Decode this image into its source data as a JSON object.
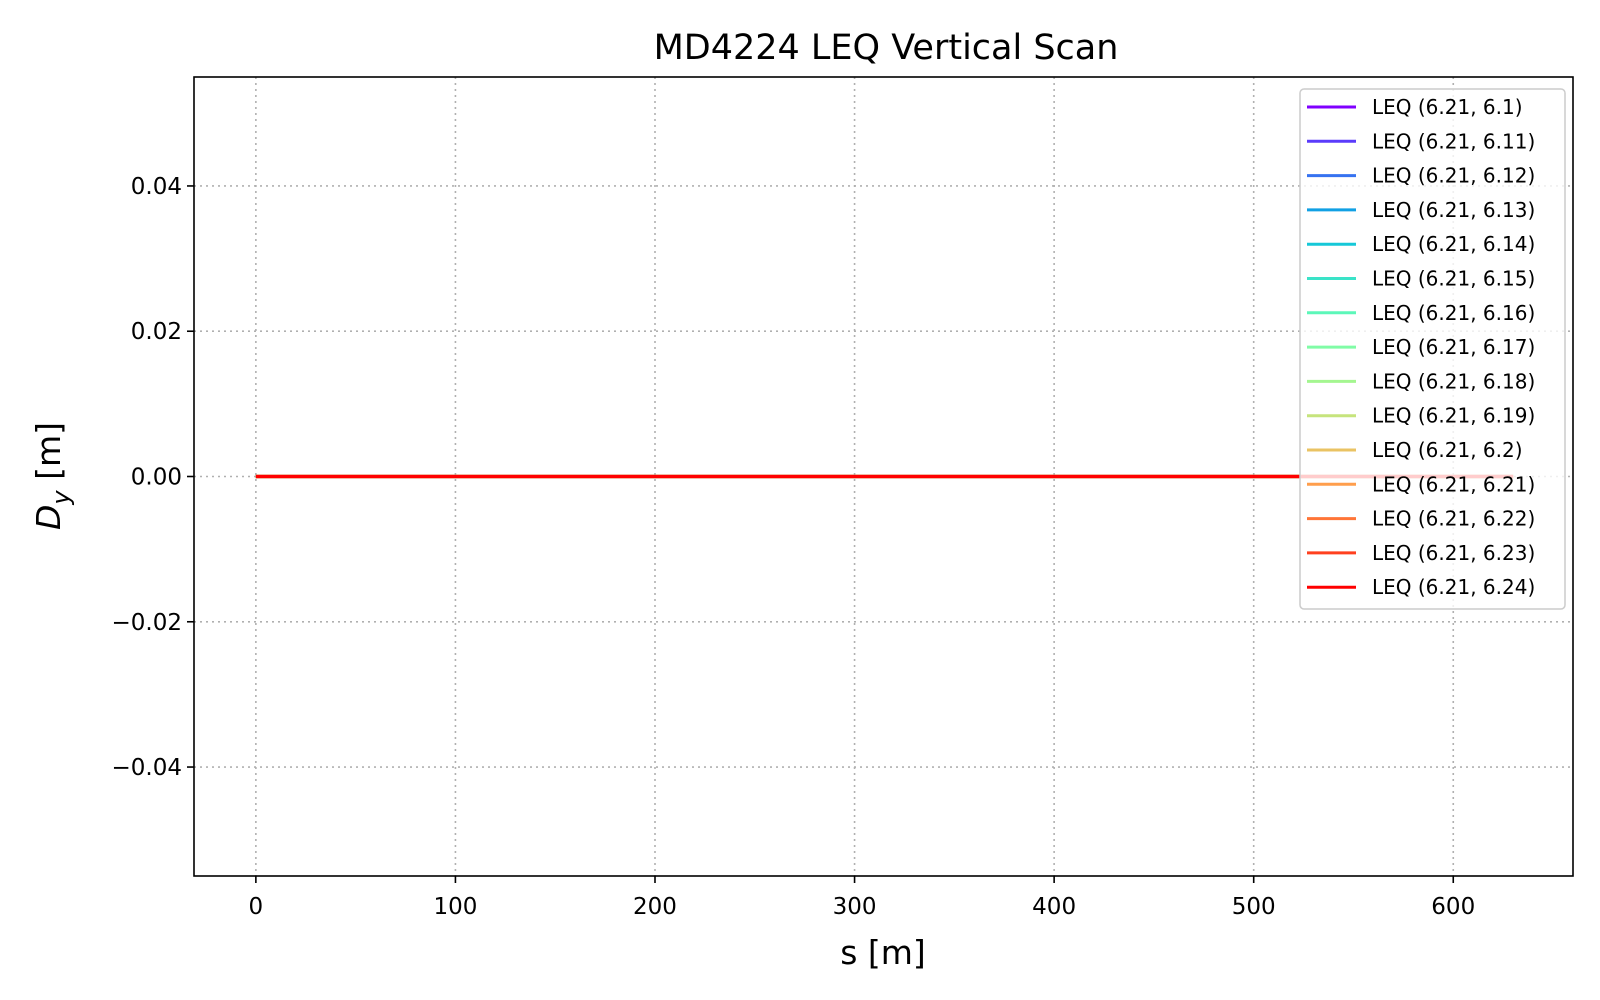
{
  "chart_data": {
    "type": "line",
    "title": "MD4224 LEQ Vertical Scan",
    "xlabel": "s [m]",
    "ylabel_main": "D",
    "ylabel_sub": "y",
    "ylabel_unit": " [m]",
    "xlim": [
      -31,
      660
    ],
    "ylim": [
      -0.055,
      0.055
    ],
    "xticks": [
      0,
      100,
      200,
      300,
      400,
      500,
      600
    ],
    "xtick_labels": [
      "0",
      "100",
      "200",
      "300",
      "400",
      "500",
      "600"
    ],
    "yticks": [
      -0.04,
      -0.02,
      0.0,
      0.02,
      0.04
    ],
    "ytick_labels": [
      "−0.04",
      "−0.02",
      "0.00",
      "0.02",
      "0.04"
    ],
    "grid": true,
    "grid_style": "dotted",
    "legend_position": "upper right",
    "series": [
      {
        "name": "LEQ (6.21, 6.1)",
        "color": "#8000ff",
        "x": [
          0,
          630
        ],
        "y": [
          0,
          0
        ]
      },
      {
        "name": "LEQ (6.21, 6.11)",
        "color": "#5a3bfb",
        "x": [
          0,
          630
        ],
        "y": [
          0,
          0
        ]
      },
      {
        "name": "LEQ (6.21, 6.12)",
        "color": "#3672f0",
        "x": [
          0,
          630
        ],
        "y": [
          0,
          0
        ]
      },
      {
        "name": "LEQ (6.21, 6.13)",
        "color": "#11a0e4",
        "x": [
          0,
          630
        ],
        "y": [
          0,
          0
        ]
      },
      {
        "name": "LEQ (6.21, 6.14)",
        "color": "#16c8d8",
        "x": [
          0,
          630
        ],
        "y": [
          0,
          0
        ]
      },
      {
        "name": "LEQ (6.21, 6.15)",
        "color": "#3ae3c8",
        "x": [
          0,
          630
        ],
        "y": [
          0,
          0
        ]
      },
      {
        "name": "LEQ (6.21, 6.16)",
        "color": "#5cf7b9",
        "x": [
          0,
          630
        ],
        "y": [
          0,
          0
        ]
      },
      {
        "name": "LEQ (6.21, 6.17)",
        "color": "#80fca6",
        "x": [
          0,
          630
        ],
        "y": [
          0,
          0
        ]
      },
      {
        "name": "LEQ (6.21, 6.18)",
        "color": "#a4f690",
        "x": [
          0,
          630
        ],
        "y": [
          0,
          0
        ]
      },
      {
        "name": "LEQ (6.21, 6.19)",
        "color": "#c6e47c",
        "x": [
          0,
          630
        ],
        "y": [
          0,
          0
        ]
      },
      {
        "name": "LEQ (6.21, 6.2)",
        "color": "#eac363",
        "x": [
          0,
          630
        ],
        "y": [
          0,
          0
        ]
      },
      {
        "name": "LEQ (6.21, 6.21)",
        "color": "#ff9e4c",
        "x": [
          0,
          630
        ],
        "y": [
          0,
          0
        ]
      },
      {
        "name": "LEQ (6.21, 6.22)",
        "color": "#ff7537",
        "x": [
          0,
          630
        ],
        "y": [
          0,
          0
        ]
      },
      {
        "name": "LEQ (6.21, 6.23)",
        "color": "#ff401f",
        "x": [
          0,
          630
        ],
        "y": [
          0,
          0
        ]
      },
      {
        "name": "LEQ (6.21, 6.24)",
        "color": "#ff0000",
        "x": [
          0,
          630
        ],
        "y": [
          0,
          0
        ]
      }
    ]
  }
}
